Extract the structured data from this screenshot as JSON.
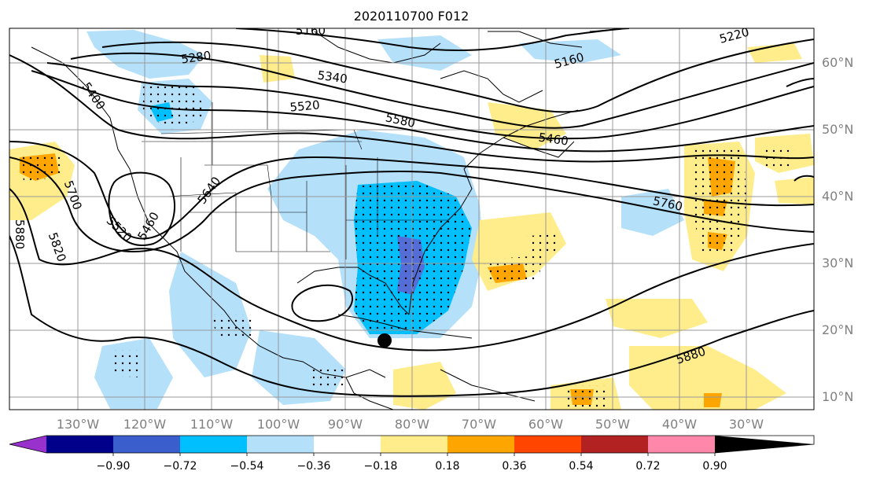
{
  "title": "2020110700 F012",
  "lat_labels": [
    "60°N",
    "50°N",
    "40°N",
    "30°N",
    "20°N",
    "10°N"
  ],
  "lon_labels": [
    "130°W",
    "120°W",
    "110°W",
    "100°W",
    "90°W",
    "80°W",
    "70°W",
    "60°W",
    "50°W",
    "40°W",
    "30°W"
  ],
  "contour_labels": {
    "c5160a": "5160",
    "c5160b": "5160",
    "c5220": "5220",
    "c5280": "5280",
    "c5340": "5340",
    "c5400": "5400",
    "c5460a": "5460",
    "c5460b": "5460",
    "c5520a": "5520",
    "c5520b": "5520",
    "c5580": "5580",
    "c5640": "5640",
    "c5700": "5700",
    "c5760": "5760",
    "c5820": "5820",
    "c5880a": "5880",
    "c5880b": "5880"
  },
  "colorbar": {
    "ticks": [
      "−0.90",
      "−0.72",
      "−0.54",
      "−0.36",
      "−0.18",
      "0.18",
      "0.36",
      "0.54",
      "0.72",
      "0.90"
    ],
    "colors": [
      "#9932cc",
      "#00008b",
      "#3a5fcd",
      "#00bfff",
      "#b4e0fa",
      "#ffffff",
      "#ffec8b",
      "#ffa500",
      "#ff4500",
      "#b22222",
      "#ff88aa"
    ]
  },
  "colors": {
    "neg_light": "#b4e0fa",
    "neg_mid": "#00bfff",
    "neg_dark": "#6a5acd",
    "pos_light": "#ffec8b",
    "pos_mid": "#ffa500",
    "grid": "#999999"
  }
}
